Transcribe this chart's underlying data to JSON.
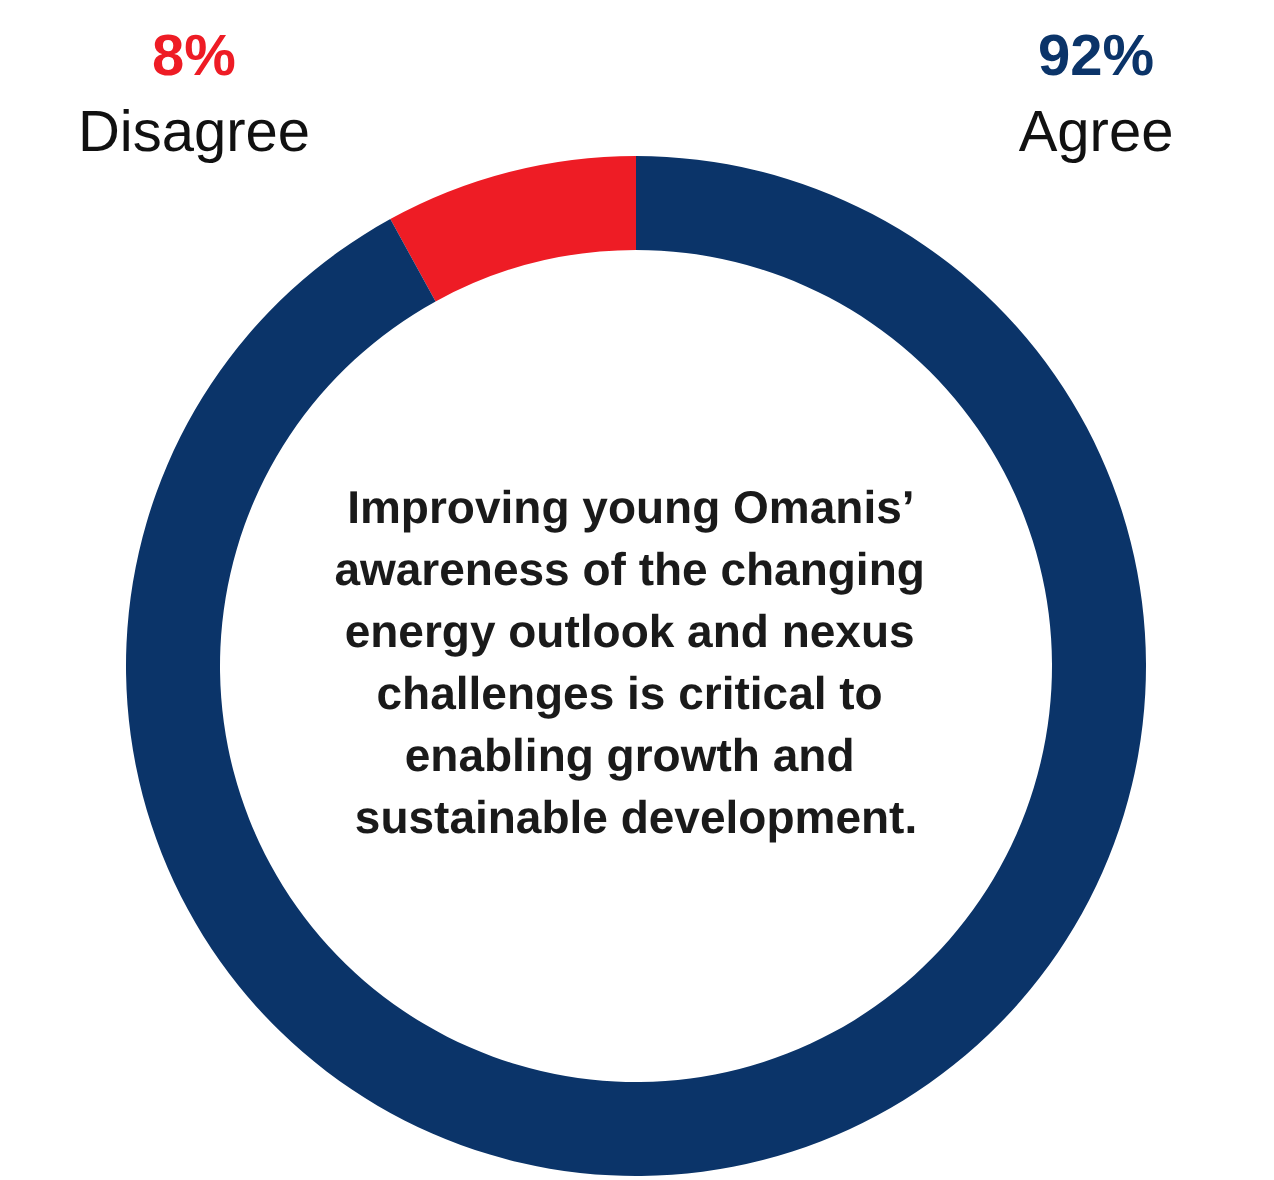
{
  "chart_data": {
    "type": "donut",
    "categories": [
      "Disagree",
      "Agree"
    ],
    "values": [
      8,
      92
    ],
    "colors": [
      "#ee1c25",
      "#0b3469"
    ],
    "value_labels": [
      "8%",
      "92%"
    ],
    "annotations": [
      "Improving young Omanis’ awareness of the changing energy outlook and nexus challenges is critical to enabling growth and sustainable development."
    ]
  }
}
